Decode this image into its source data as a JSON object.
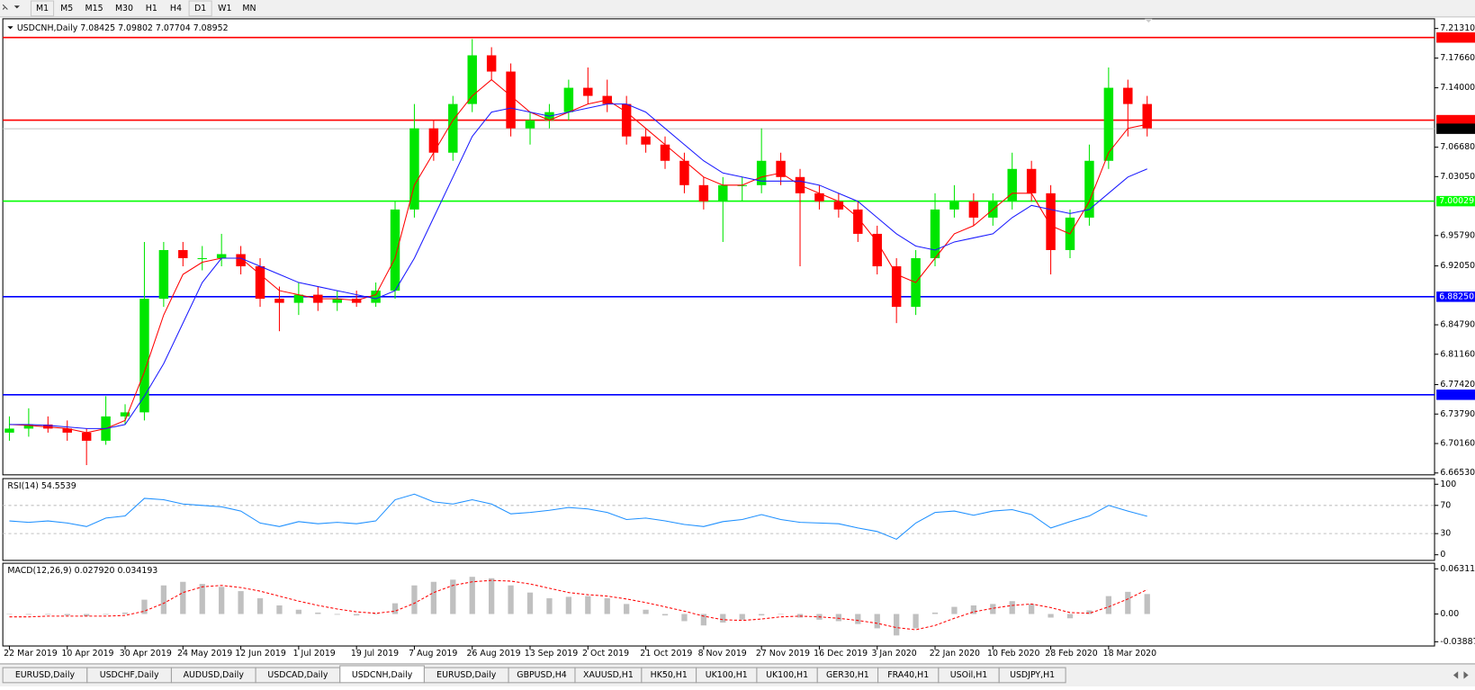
{
  "toolbar": {
    "timeframes": [
      "M1",
      "M5",
      "M15",
      "M30",
      "H1",
      "H4",
      "D1",
      "W1",
      "MN"
    ]
  },
  "chart_data": [
    {
      "type": "candlestick",
      "title": "USDCNH,Daily  7.08425 7.09802 7.07704 7.08952",
      "categories": [
        "22 Mar 2019",
        null,
        null,
        "10 Apr 2019",
        null,
        null,
        "30 Apr 2019",
        null,
        null,
        "24 May 2019",
        null,
        null,
        "12 Jun 2019",
        null,
        null,
        "1 Jul 2019",
        null,
        null,
        "19 Jul 2019",
        null,
        null,
        "7 Aug 2019",
        null,
        null,
        "26 Aug 2019",
        null,
        null,
        "13 Sep 2019",
        null,
        null,
        "2 Oct 2019",
        null,
        null,
        "21 Oct 2019",
        null,
        null,
        "8 Nov 2019",
        null,
        null,
        "27 Nov 2019",
        null,
        null,
        "16 Dec 2019",
        null,
        null,
        "3 Jan 2020",
        null,
        null,
        "22 Jan 2020",
        null,
        null,
        "10 Feb 2020",
        null,
        null,
        "28 Feb 2020",
        null,
        null,
        "18 Mar 2020",
        null,
        null
      ],
      "open": [
        6.715,
        6.72,
        6.725,
        6.72,
        6.715,
        6.705,
        6.735,
        6.74,
        6.88,
        6.94,
        6.93,
        6.93,
        6.935,
        6.92,
        6.88,
        6.875,
        6.885,
        6.875,
        6.88,
        6.875,
        6.89,
        6.99,
        7.09,
        7.06,
        7.12,
        7.18,
        7.16,
        7.09,
        7.1,
        7.11,
        7.14,
        7.13,
        7.12,
        7.08,
        7.07,
        7.05,
        7.02,
        7.0,
        7.02,
        7.02,
        7.05,
        7.03,
        7.01,
        7.0,
        6.99,
        6.96,
        6.92,
        6.87,
        6.93,
        6.99,
        7.0,
        6.98,
        7.0,
        7.04,
        7.01,
        6.94,
        6.98,
        7.05,
        7.14,
        7.12
      ],
      "high": [
        6.735,
        6.745,
        6.735,
        6.73,
        6.72,
        6.76,
        6.75,
        6.95,
        6.95,
        6.95,
        6.945,
        6.96,
        6.945,
        6.93,
        6.895,
        6.9,
        6.895,
        6.89,
        6.89,
        6.9,
        7.0,
        7.12,
        7.1,
        7.13,
        7.2,
        7.19,
        7.17,
        7.11,
        7.12,
        7.15,
        7.165,
        7.15,
        7.13,
        7.09,
        7.08,
        7.06,
        7.03,
        7.03,
        7.03,
        7.09,
        7.06,
        7.04,
        7.02,
        7.01,
        7.0,
        6.97,
        6.93,
        6.94,
        7.01,
        7.02,
        7.01,
        7.01,
        7.06,
        7.05,
        7.02,
        6.99,
        7.07,
        7.165,
        7.15,
        7.13
      ],
      "low": [
        6.705,
        6.71,
        6.715,
        6.705,
        6.675,
        6.7,
        6.725,
        6.73,
        6.87,
        6.92,
        6.915,
        6.92,
        6.91,
        6.87,
        6.84,
        6.86,
        6.865,
        6.865,
        6.87,
        6.87,
        6.88,
        6.98,
        7.05,
        7.05,
        7.11,
        7.15,
        7.08,
        7.07,
        7.09,
        7.1,
        7.12,
        7.11,
        7.07,
        7.06,
        7.04,
        7.01,
        6.99,
        6.95,
        7.0,
        7.01,
        7.02,
        6.92,
        6.99,
        6.98,
        6.95,
        6.91,
        6.85,
        6.86,
        6.92,
        6.98,
        6.97,
        6.97,
        6.99,
        7.0,
        6.91,
        6.93,
        6.97,
        7.04,
        7.08,
        7.08
      ],
      "close": [
        6.72,
        6.725,
        6.72,
        6.715,
        6.705,
        6.735,
        6.74,
        6.88,
        6.94,
        6.93,
        6.93,
        6.935,
        6.92,
        6.88,
        6.875,
        6.885,
        6.875,
        6.88,
        6.875,
        6.89,
        6.99,
        7.09,
        7.06,
        7.12,
        7.18,
        7.16,
        7.09,
        7.1,
        7.11,
        7.14,
        7.13,
        7.12,
        7.08,
        7.07,
        7.05,
        7.02,
        7.0,
        7.02,
        7.02,
        7.05,
        7.03,
        7.01,
        7.0,
        6.99,
        6.96,
        6.92,
        6.87,
        6.93,
        6.99,
        7.0,
        6.98,
        7.0,
        7.04,
        7.01,
        6.94,
        6.98,
        7.05,
        7.14,
        7.12,
        7.09
      ],
      "up_color": "#00e600",
      "down_color": "#ff0000",
      "series": [
        {
          "color": "#ff0000",
          "values": [
            6.725,
            6.724,
            6.722,
            6.72,
            6.715,
            6.72,
            6.73,
            6.79,
            6.86,
            6.91,
            6.925,
            6.93,
            6.93,
            6.91,
            6.89,
            6.885,
            6.88,
            6.88,
            6.878,
            6.885,
            6.93,
            7.02,
            7.06,
            7.1,
            7.13,
            7.15,
            7.13,
            7.11,
            7.1,
            7.11,
            7.12,
            7.125,
            7.11,
            7.09,
            7.07,
            7.05,
            7.03,
            7.02,
            7.02,
            7.03,
            7.035,
            7.02,
            7.01,
            7.0,
            6.98,
            6.95,
            6.91,
            6.9,
            6.93,
            6.96,
            6.97,
            6.99,
            7.01,
            7.01,
            6.97,
            6.96,
            7.0,
            7.06,
            7.09,
            7.095
          ]
        },
        {
          "color": "#1a1aff",
          "values": [
            6.725,
            6.725,
            6.724,
            6.722,
            6.72,
            6.72,
            6.725,
            6.76,
            6.8,
            6.85,
            6.9,
            6.93,
            6.93,
            6.92,
            6.91,
            6.9,
            6.895,
            6.89,
            6.885,
            6.88,
            6.89,
            6.93,
            6.98,
            7.03,
            7.08,
            7.11,
            7.115,
            7.11,
            7.105,
            7.11,
            7.115,
            7.12,
            7.12,
            7.11,
            7.09,
            7.07,
            7.05,
            7.035,
            7.03,
            7.025,
            7.025,
            7.025,
            7.02,
            7.01,
            7.0,
            6.98,
            6.96,
            6.945,
            6.94,
            6.95,
            6.955,
            6.96,
            6.98,
            6.995,
            6.99,
            6.985,
            6.99,
            7.01,
            7.03,
            7.04
          ]
        }
      ],
      "levels": [
        {
          "value": 7.20193,
          "color": "#ff0000"
        },
        {
          "value": 7.10011,
          "color": "#ff0000"
        },
        {
          "value": 7.08952,
          "color": "#c0c0c0",
          "label_background": "#000000"
        },
        {
          "value": 7.00029,
          "label": "7.00029",
          "color": "#00ff00"
        },
        {
          "value": 6.8825,
          "label": "6.88250",
          "color": "#0000ff"
        },
        {
          "value": 6.76171,
          "color": "#0000ff"
        }
      ],
      "ylim": [
        6.663,
        7.225
      ],
      "yticks": [
        {
          "value": 7.2131,
          "label": "7.21310"
        },
        {
          "value": 7.1766,
          "label": "7.17660"
        },
        {
          "value": 7.14,
          "label": "7.14000"
        },
        {
          "value": 7.0668,
          "label": "7.06680"
        },
        {
          "value": 7.0305,
          "label": "7.03050"
        },
        {
          "value": 6.9579,
          "label": "6.95790"
        },
        {
          "value": 6.9205,
          "label": "6.92050"
        },
        {
          "value": 6.8479,
          "label": "6.84790"
        },
        {
          "value": 6.8116,
          "label": "6.81160"
        },
        {
          "value": 6.7742,
          "label": "6.77420"
        },
        {
          "value": 6.7379,
          "label": "6.73790"
        },
        {
          "value": 6.7016,
          "label": "6.70160"
        },
        {
          "value": 6.6653,
          "label": "6.66530"
        }
      ]
    },
    {
      "type": "line",
      "title": "RSI(14) 54.5539",
      "color": "#1e90ff",
      "values": [
        48,
        46,
        48,
        45,
        40,
        52,
        55,
        80,
        78,
        72,
        70,
        68,
        62,
        45,
        40,
        47,
        44,
        46,
        44,
        48,
        78,
        86,
        75,
        72,
        78,
        72,
        58,
        60,
        63,
        67,
        65,
        60,
        50,
        52,
        48,
        43,
        40,
        47,
        50,
        57,
        50,
        46,
        45,
        44,
        38,
        33,
        22,
        45,
        60,
        62,
        56,
        62,
        64,
        57,
        38,
        47,
        55,
        70,
        62,
        54.5539
      ],
      "ylim": [
        -8,
        108
      ],
      "yticks": [
        100,
        70,
        30,
        0
      ],
      "levels": [
        70,
        30
      ]
    },
    {
      "type": "bar",
      "title": "MACD(12,26,9) 0.027920 0.034193",
      "color": "#c0c0c0",
      "signal_color": "#ff0000",
      "values": [
        0.0,
        -0.001,
        -0.001,
        -0.002,
        -0.003,
        -0.001,
        0.002,
        0.02,
        0.04,
        0.045,
        0.042,
        0.038,
        0.032,
        0.022,
        0.012,
        0.006,
        0.002,
        -0.001,
        -0.002,
        0.0,
        0.015,
        0.04,
        0.045,
        0.048,
        0.052,
        0.05,
        0.04,
        0.03,
        0.022,
        0.024,
        0.025,
        0.022,
        0.014,
        0.006,
        -0.002,
        -0.01,
        -0.016,
        -0.012,
        -0.008,
        -0.002,
        0.0,
        -0.005,
        -0.008,
        -0.01,
        -0.014,
        -0.02,
        -0.03,
        -0.02,
        0.002,
        0.01,
        0.012,
        0.014,
        0.018,
        0.014,
        -0.005,
        -0.006,
        0.005,
        0.025,
        0.031,
        0.02792
      ],
      "signal": [
        -0.004,
        -0.004,
        -0.003,
        -0.003,
        -0.003,
        -0.003,
        -0.002,
        0.004,
        0.015,
        0.03,
        0.038,
        0.04,
        0.037,
        0.032,
        0.025,
        0.018,
        0.012,
        0.007,
        0.003,
        0.001,
        0.004,
        0.015,
        0.03,
        0.04,
        0.045,
        0.047,
        0.046,
        0.042,
        0.036,
        0.03,
        0.027,
        0.025,
        0.021,
        0.016,
        0.01,
        0.004,
        -0.003,
        -0.008,
        -0.009,
        -0.007,
        -0.004,
        -0.003,
        -0.004,
        -0.006,
        -0.009,
        -0.013,
        -0.019,
        -0.022,
        -0.016,
        -0.006,
        0.003,
        0.008,
        0.012,
        0.014,
        0.009,
        0.002,
        0.001,
        0.01,
        0.021,
        0.034193
      ],
      "ylim": [
        -0.0447,
        0.071
      ],
      "yticks": [
        0.063113,
        {
          "value": 0,
          "label": "0.00"
        },
        -0.038872
      ]
    }
  ],
  "tabs": [
    "EURUSD,Daily",
    "USDCHF,Daily",
    "AUDUSD,Daily",
    "USDCAD,Daily",
    "USDCNH,Daily",
    "EURUSD,Daily",
    "GBPUSD,H4",
    "XAUUSD,H1",
    "HK50,H1",
    "UK100,H1",
    "UK100,H1",
    "GER30,H1",
    "FRA40,H1",
    "USOil,H1",
    "USDJPY,H1"
  ],
  "active_tab": 4
}
